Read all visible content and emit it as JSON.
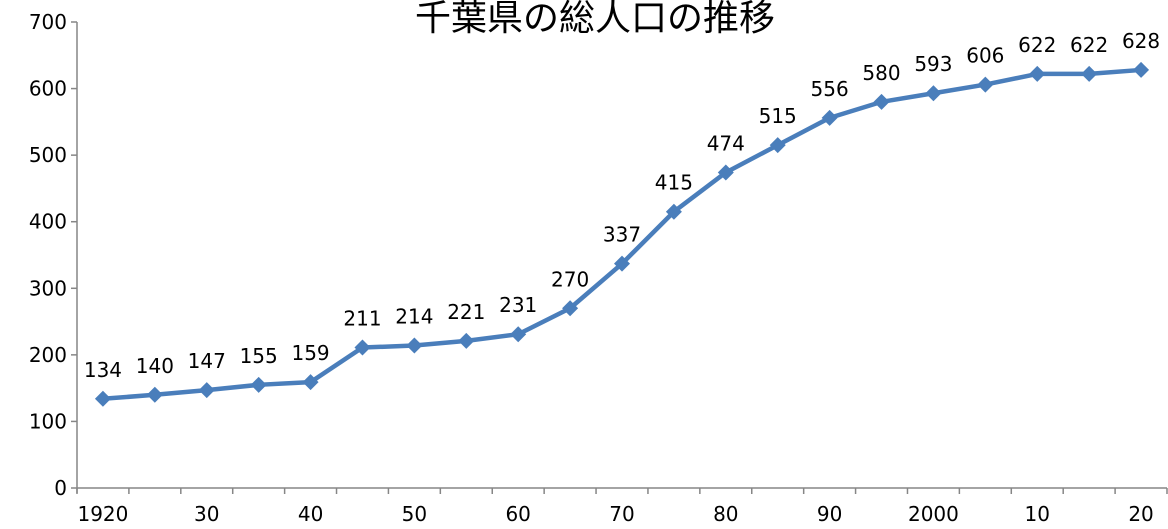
{
  "chart_data": {
    "type": "line",
    "title": "千葉県の総人口の推移",
    "xlabel": "",
    "ylabel": "",
    "ylim": [
      0,
      700
    ],
    "yticks": [
      0,
      100,
      200,
      300,
      400,
      500,
      600,
      700
    ],
    "x": [
      1920,
      1925,
      1930,
      1935,
      1940,
      1945,
      1950,
      1955,
      1960,
      1965,
      1970,
      1975,
      1980,
      1985,
      1990,
      1995,
      2000,
      2005,
      2010,
      2015,
      2020
    ],
    "x_tick_labels": [
      "1920",
      "30",
      "40",
      "50",
      "60",
      "70",
      "80",
      "90",
      "2000",
      "10",
      "20"
    ],
    "series": [
      {
        "values": [
          134,
          140,
          147,
          155,
          159,
          211,
          214,
          221,
          231,
          270,
          337,
          415,
          474,
          515,
          556,
          580,
          593,
          606,
          622,
          622,
          628
        ],
        "color": "#4a7ebb",
        "marker": "diamond"
      }
    ],
    "data_labels": true,
    "grid": false,
    "legend": "none"
  }
}
